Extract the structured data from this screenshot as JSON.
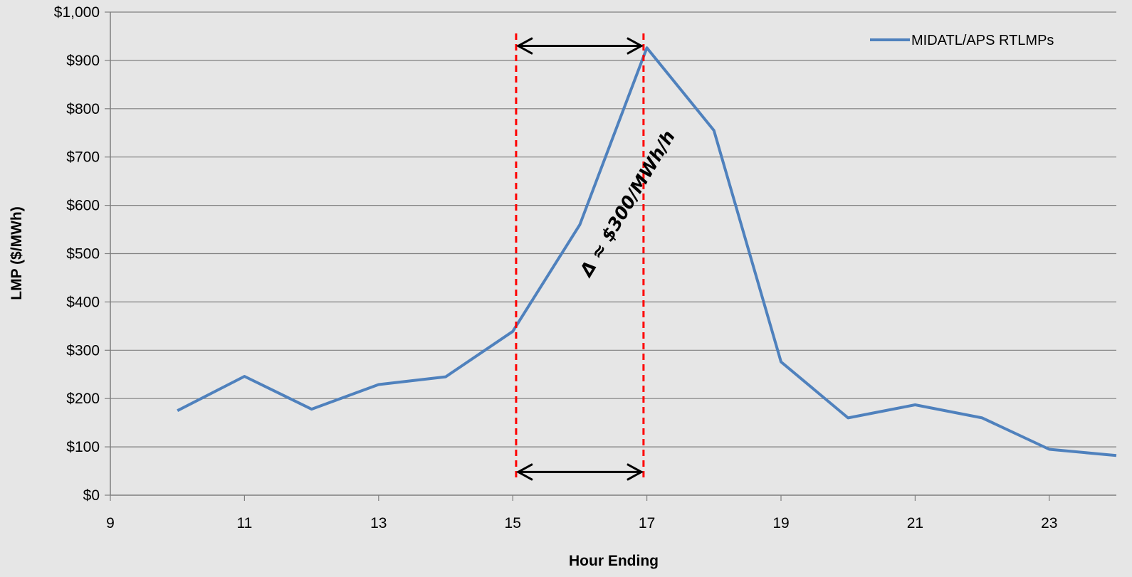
{
  "chart_data": {
    "type": "line",
    "xlabel": "Hour Ending",
    "ylabel": "LMP ($/MWh)",
    "xlim": [
      9,
      24
    ],
    "ylim": [
      0,
      1000
    ],
    "x_ticks": [
      9,
      11,
      13,
      15,
      17,
      19,
      21,
      23
    ],
    "x_tick_labels": [
      "9",
      "11",
      "13",
      "15",
      "17",
      "19",
      "21",
      "23"
    ],
    "y_ticks": [
      0,
      100,
      200,
      300,
      400,
      500,
      600,
      700,
      800,
      900,
      1000
    ],
    "y_tick_labels": [
      "$0",
      "$100",
      "$200",
      "$300",
      "$400",
      "$500",
      "$600",
      "$700",
      "$800",
      "$900",
      "$1,000"
    ],
    "grid": true,
    "legend_position": "top-right",
    "series": [
      {
        "name": "MIDATL/APS RTLMPs",
        "color": "#4f81bd",
        "x": [
          10,
          11,
          12,
          13,
          14,
          15,
          16,
          17,
          18,
          19,
          20,
          21,
          22,
          23,
          24
        ],
        "y": [
          175,
          246,
          178,
          229,
          245,
          339,
          560,
          926,
          755,
          276,
          160,
          187,
          160,
          95,
          82
        ]
      }
    ],
    "annotations": {
      "vlines": {
        "x": [
          15.05,
          16.95
        ],
        "color": "#ff0000",
        "style": "dashed"
      },
      "arrows": [
        {
          "from": 15.05,
          "to": 16.95,
          "y": 930
        },
        {
          "from": 15.05,
          "to": 16.95,
          "y": 48
        }
      ],
      "text": "Δ ≈ $300/MWh/h"
    }
  }
}
